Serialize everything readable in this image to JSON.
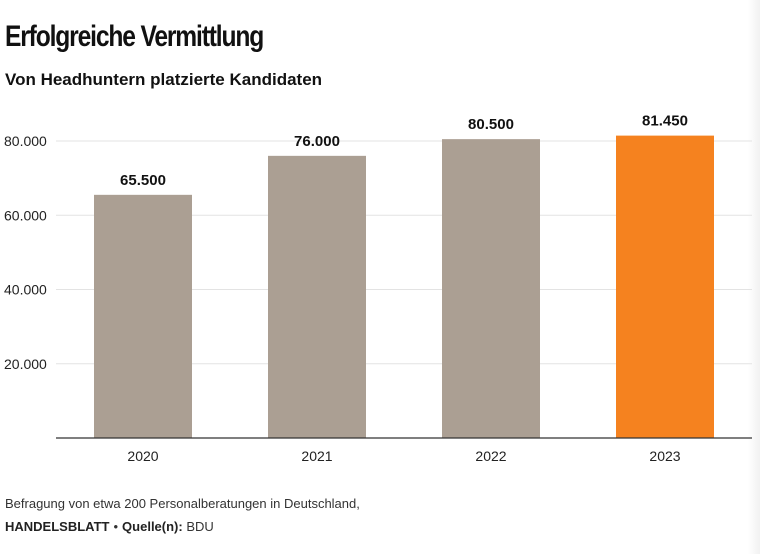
{
  "header": {
    "title": "Erfolgreiche Vermittlung",
    "subtitle": "Von Headhuntern platzierte Kandidaten"
  },
  "footer": {
    "note": "Befragung von etwa 200 Personalberatungen in Deutschland,",
    "brand": "HANDELSBLATT",
    "separator": "•",
    "source_label": "Quelle(n):",
    "source": "BDU"
  },
  "colors": {
    "bar_default": "#ab9f93",
    "bar_highlight": "#f5821f",
    "grid": "#e3e3e3",
    "axis": "#333333",
    "text": "#111111"
  },
  "chart_data": {
    "type": "bar",
    "title": "Erfolgreiche Vermittlung",
    "subtitle": "Von Headhuntern platzierte Kandidaten",
    "categories": [
      "2020",
      "2021",
      "2022",
      "2023"
    ],
    "values": [
      65500,
      76000,
      80500,
      81450
    ],
    "value_labels": [
      "65.500",
      "76.000",
      "80.500",
      "81.450"
    ],
    "highlight_index": 3,
    "ylim": [
      0,
      80000
    ],
    "yticks": [
      20000,
      40000,
      60000,
      80000
    ],
    "ytick_labels": [
      "20.000",
      "40.000",
      "60.000",
      "80.000"
    ],
    "xlabel": "",
    "ylabel": "",
    "grid": true,
    "legend": "none"
  }
}
